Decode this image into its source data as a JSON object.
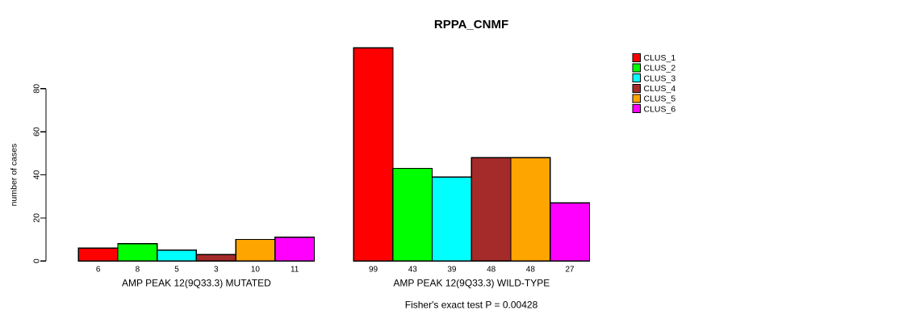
{
  "figure": {
    "background": "#FFFFFF"
  },
  "chart_data": {
    "type": "bar",
    "title": "RPPA_CNMF",
    "xlabel": "",
    "ylabel": "number of cases",
    "yticks": [
      0,
      20,
      40,
      60,
      80
    ],
    "ylim": [
      0,
      100
    ],
    "grid": false,
    "legend_position": "right",
    "legend": [
      {
        "name": "CLUS_1",
        "color": "#FF0000"
      },
      {
        "name": "CLUS_2",
        "color": "#00FF00"
      },
      {
        "name": "CLUS_3",
        "color": "#00FFFF"
      },
      {
        "name": "CLUS_4",
        "color": "#A52A2A"
      },
      {
        "name": "CLUS_5",
        "color": "#FFA500"
      },
      {
        "name": "CLUS_6",
        "color": "#FF00FF"
      }
    ],
    "groups": [
      {
        "label": "AMP PEAK 12(9Q33.3) MUTATED",
        "values": [
          6,
          8,
          5,
          3,
          10,
          11
        ]
      },
      {
        "label": "AMP PEAK 12(9Q33.3) WILD-TYPE",
        "values": [
          99,
          43,
          39,
          48,
          48,
          27
        ]
      }
    ],
    "bar_value_labels": [
      [
        "6",
        "8",
        "5",
        "3",
        "10",
        "11"
      ],
      [
        "99",
        "43",
        "39",
        "48",
        "48",
        "27"
      ]
    ],
    "annotation": "Fisher's exact test P = 0.00428",
    "axis_color": "#000000",
    "bar_border_color": "#000000"
  }
}
